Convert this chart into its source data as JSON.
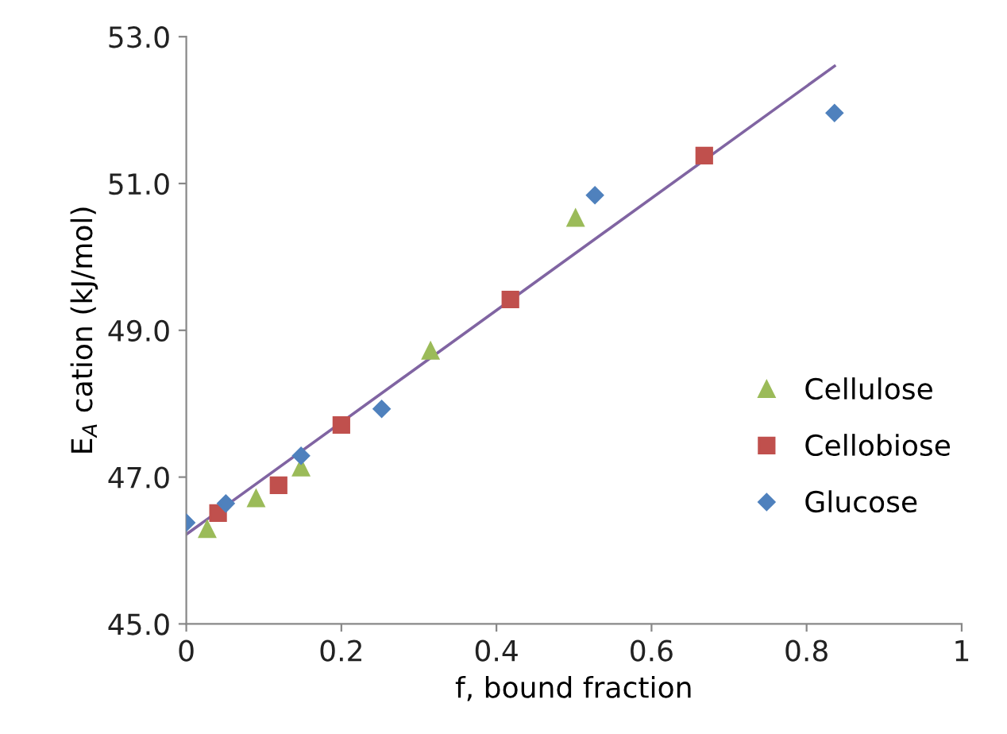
{
  "chart_data": {
    "type": "scatter",
    "xlabel": "f, bound fraction",
    "ylabel": "E$_{A}$ cation (kJ/mol)",
    "xlim": [
      0,
      1
    ],
    "xticks": [
      0,
      {
        "value": 0.2,
        "label": "0.2"
      },
      {
        "value": 0.4,
        "label": "0.4"
      },
      {
        "value": 0.6,
        "label": "0.6"
      },
      {
        "value": 0.8,
        "label": "0.8"
      },
      1
    ],
    "ylim": [
      45,
      53
    ],
    "yticks": [
      {
        "value": 45,
        "label": "45.0"
      },
      {
        "value": 47,
        "label": "47.0"
      },
      {
        "value": 49,
        "label": "49.0"
      },
      {
        "value": 51,
        "label": "51.0"
      },
      {
        "value": 53,
        "label": "53.0"
      }
    ],
    "grid": false,
    "legend": "right",
    "series": [
      {
        "type": "line",
        "color": "#8064a2",
        "marker": "none",
        "line_style": "solid",
        "x": [
          0,
          0.836
        ],
        "values": [
          46.22,
          52.6
        ]
      },
      {
        "name": "Cellulose",
        "color": "#9bbb59",
        "marker": "triangle",
        "x": [
          0.027,
          0.09,
          0.148,
          0.315,
          0.502
        ],
        "values": [
          46.29,
          46.71,
          47.13,
          48.72,
          50.53
        ]
      },
      {
        "name": "Cellobiose",
        "color": "#c0504d",
        "marker": "square",
        "x": [
          0.041,
          0.119,
          0.2,
          0.418,
          0.668
        ],
        "values": [
          46.51,
          46.89,
          47.71,
          49.42,
          51.38
        ]
      },
      {
        "name": "Glucose",
        "color": "#4f81bd",
        "marker": "diamond",
        "x": [
          0,
          0.051,
          0.148,
          0.252,
          0.527,
          0.836
        ],
        "values": [
          46.38,
          46.64,
          47.29,
          47.93,
          50.84,
          51.96
        ]
      }
    ]
  }
}
